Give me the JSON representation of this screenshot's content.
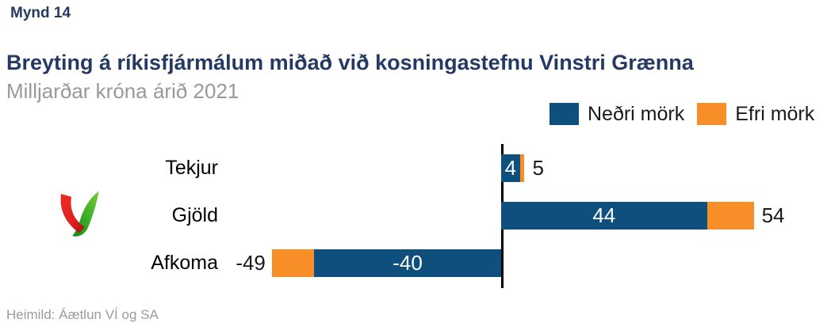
{
  "page": {
    "kicker": "Mynd 14",
    "title": "Breyting á ríkisfjármálum miðað við kosningastefnu Vinstri Grænna",
    "subtitle": "Milljarðar króna árið 2021",
    "source": "Heimild: Áætlun VÍ og SA"
  },
  "colors": {
    "navy_text": "#243a64",
    "subtitle_gray": "#97999b",
    "source_gray": "#9b9b9b",
    "bar_blue": "#0e4f7d",
    "bar_orange": "#f78e28",
    "axis_black": "#000000",
    "logo_red": "#e02421",
    "logo_green": "#3aab27"
  },
  "legend": [
    {
      "label": "Neðri mörk",
      "color": "#0e4f7d"
    },
    {
      "label": "Efri mörk",
      "color": "#f78e28"
    }
  ],
  "logo": {
    "name": "red-green-v-logo"
  },
  "chart_data": {
    "type": "bar",
    "orientation": "horizontal",
    "title": "Breyting á ríkisfjármálum miðað við kosningastefnu Vinstri Grænna",
    "subtitle": "Milljarðar króna árið 2021",
    "unit": "Milljarðar króna",
    "categories": [
      "Tekjur",
      "Gjöld",
      "Afkoma"
    ],
    "series": [
      {
        "name": "Neðri mörk",
        "color": "#0e4f7d",
        "values": [
          4,
          44,
          -40
        ]
      },
      {
        "name": "Efri mörk",
        "color": "#f78e28",
        "values": [
          5,
          54,
          -49
        ]
      }
    ],
    "value_labels": {
      "lower": [
        "4",
        "44",
        "-40"
      ],
      "upper": [
        "5",
        "54",
        "-49"
      ]
    },
    "xlim": [
      -55,
      70
    ],
    "grid": false,
    "legend_position": "top-right",
    "zero_axis_line": true
  }
}
